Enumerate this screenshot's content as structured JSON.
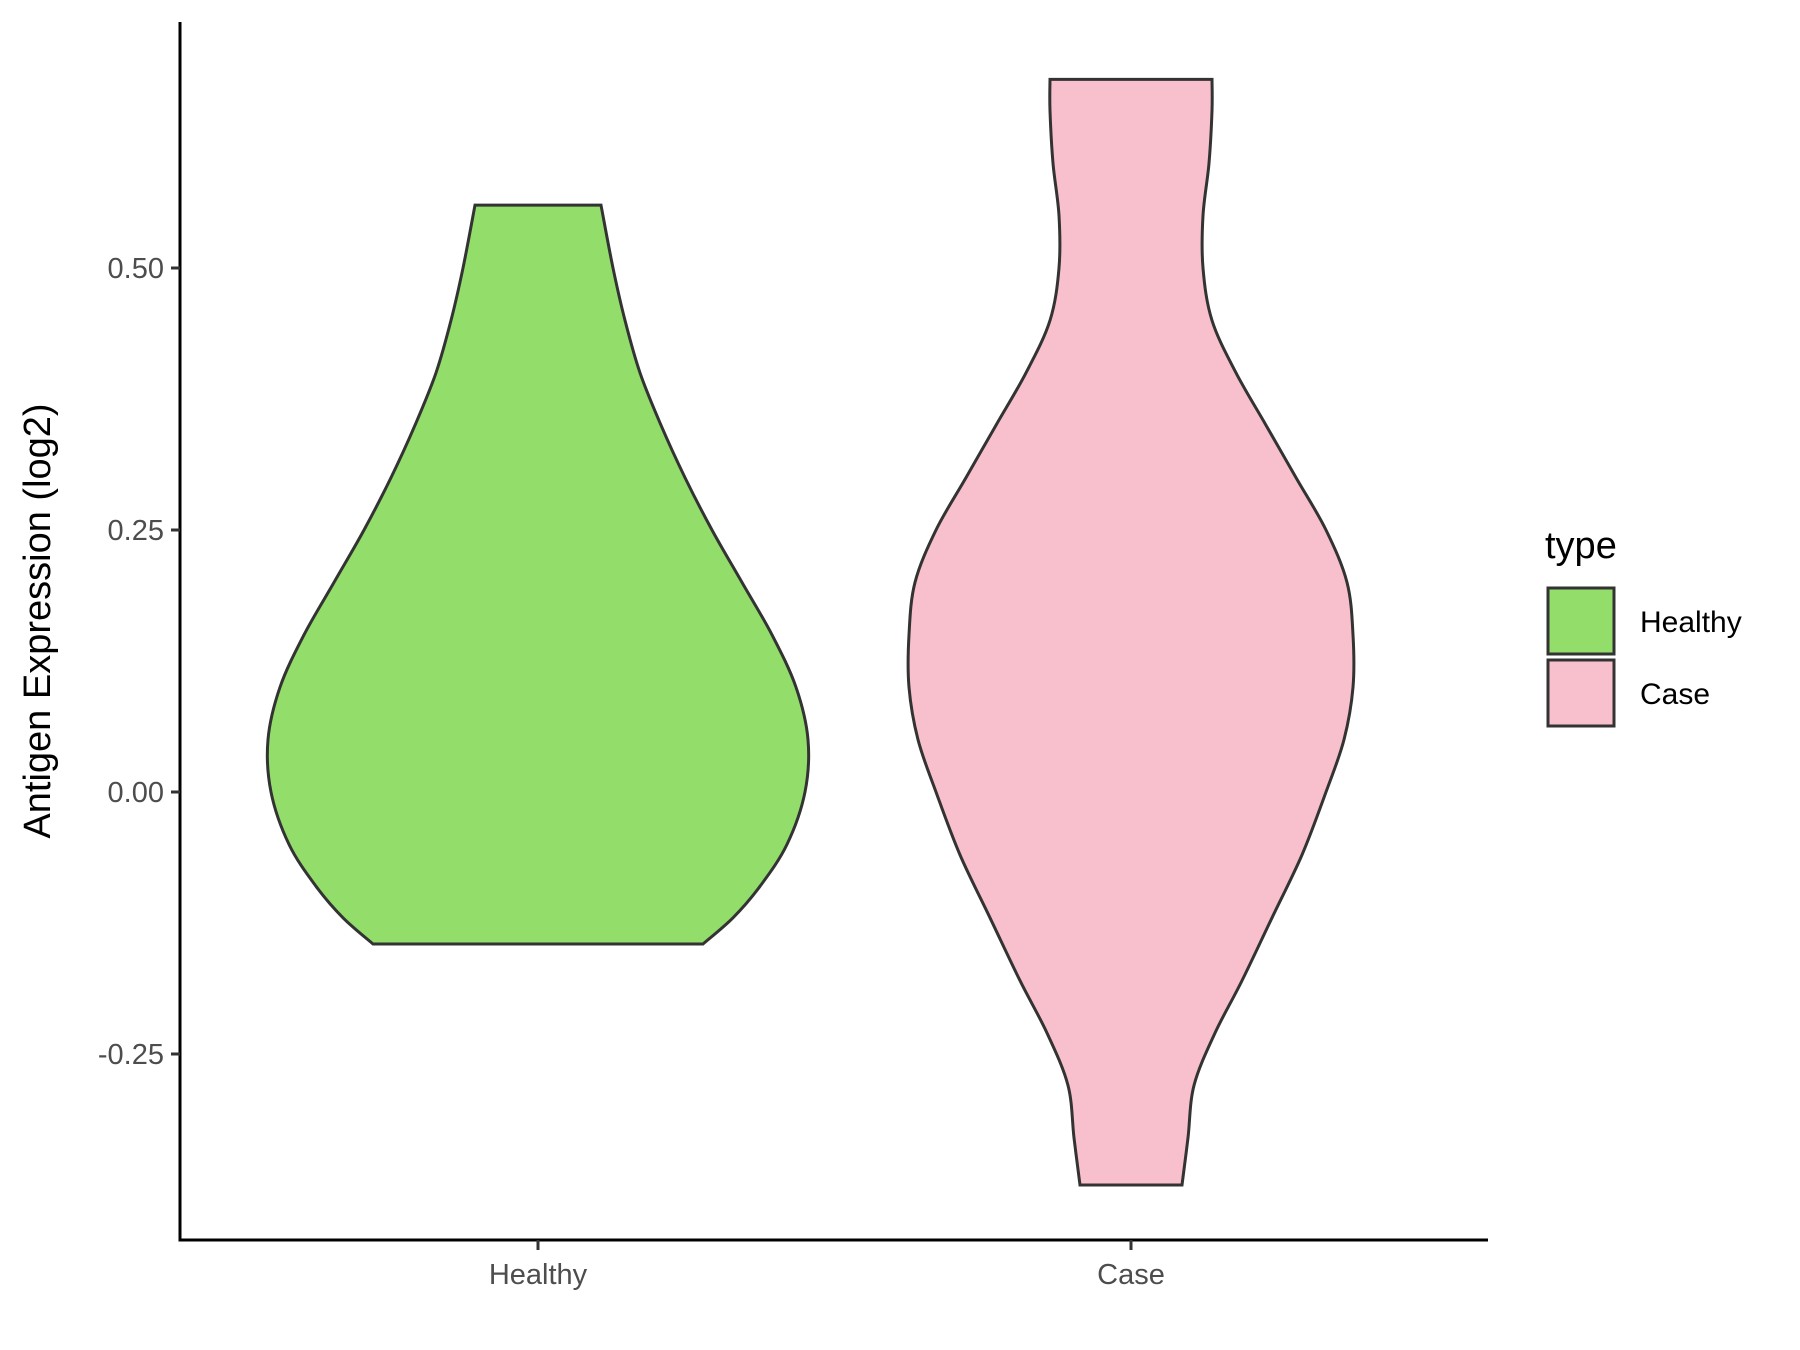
{
  "chart_data": {
    "type": "violin",
    "title": "",
    "xlabel": "",
    "ylabel": "Antigen Expression (log2)",
    "categories": [
      "Healthy",
      "Case"
    ],
    "ylim": [
      -0.42,
      0.73
    ],
    "yticks": [
      "0.50",
      "0.25",
      "0.00",
      "-0.25"
    ],
    "ytick_values": [
      0.5,
      0.25,
      0.0,
      -0.25
    ],
    "colors": {
      "Healthy": "#93dd6b",
      "Case": "#f8c0cc",
      "outline": "#333333"
    },
    "grid": false,
    "legend": {
      "title": "type",
      "placement": "right",
      "entries": [
        {
          "label": "Healthy",
          "color": "#93dd6b"
        },
        {
          "label": "Case",
          "color": "#f8c0cc"
        }
      ]
    },
    "series": [
      {
        "category": "Healthy",
        "min": -0.145,
        "max": 0.56,
        "density_profile": [
          [
            -0.145,
            0.55
          ],
          [
            -0.12,
            0.65
          ],
          [
            -0.09,
            0.74
          ],
          [
            -0.05,
            0.83
          ],
          [
            0.0,
            0.89
          ],
          [
            0.05,
            0.9
          ],
          [
            0.1,
            0.86
          ],
          [
            0.15,
            0.78
          ],
          [
            0.2,
            0.68
          ],
          [
            0.25,
            0.58
          ],
          [
            0.3,
            0.49
          ],
          [
            0.35,
            0.41
          ],
          [
            0.4,
            0.34
          ],
          [
            0.45,
            0.29
          ],
          [
            0.5,
            0.25
          ],
          [
            0.56,
            0.21
          ]
        ]
      },
      {
        "category": "Case",
        "min": -0.375,
        "max": 0.68,
        "density_profile": [
          [
            -0.375,
            0.17
          ],
          [
            -0.33,
            0.19
          ],
          [
            -0.28,
            0.21
          ],
          [
            -0.23,
            0.28
          ],
          [
            -0.18,
            0.37
          ],
          [
            -0.12,
            0.47
          ],
          [
            -0.06,
            0.57
          ],
          [
            0.0,
            0.65
          ],
          [
            0.05,
            0.71
          ],
          [
            0.1,
            0.74
          ],
          [
            0.15,
            0.74
          ],
          [
            0.2,
            0.72
          ],
          [
            0.25,
            0.65
          ],
          [
            0.3,
            0.55
          ],
          [
            0.35,
            0.45
          ],
          [
            0.4,
            0.35
          ],
          [
            0.45,
            0.27
          ],
          [
            0.5,
            0.24
          ],
          [
            0.55,
            0.24
          ],
          [
            0.6,
            0.26
          ],
          [
            0.65,
            0.27
          ],
          [
            0.68,
            0.27
          ]
        ]
      }
    ]
  }
}
